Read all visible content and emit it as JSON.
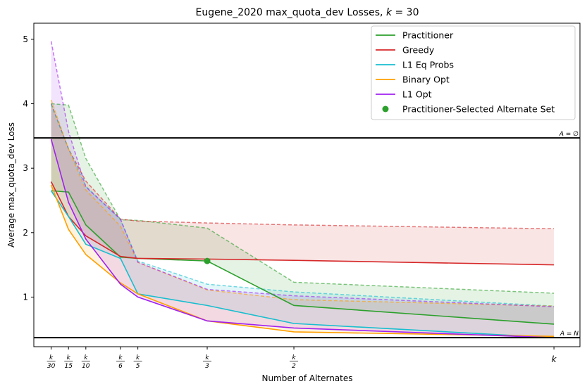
{
  "chart_data": {
    "type": "line",
    "title": "Eugene_2020 max_quota_dev Losses, k = 30",
    "xlabel": "Number of Alternates",
    "ylabel": "Average max_quota_dev Loss",
    "x": [
      1,
      2,
      3,
      5,
      6,
      10,
      15,
      30
    ],
    "x_tick_labels": [
      {
        "num": "k",
        "den": "30"
      },
      {
        "num": "k",
        "den": "15"
      },
      {
        "num": "k",
        "den": "10"
      },
      {
        "num": "k",
        "den": "6"
      },
      {
        "num": "k",
        "den": "5"
      },
      {
        "num": "k",
        "den": "3"
      },
      {
        "num": "k",
        "den": "2"
      },
      {
        "num": "k",
        "den": ""
      }
    ],
    "xlim": [
      0,
      31.5
    ],
    "ylim": [
      0.23,
      5.25
    ],
    "y_ticks": [
      1,
      2,
      3,
      4,
      5
    ],
    "legend_position": "upper-right",
    "series": [
      {
        "name": "Practitioner",
        "color": "#2ca02c",
        "values": [
          2.65,
          2.63,
          2.12,
          1.62,
          1.6,
          1.56,
          0.87,
          0.58
        ],
        "upper": [
          4.0,
          3.98,
          3.15,
          2.2,
          2.19,
          2.07,
          1.23,
          1.06
        ],
        "lower": [
          2.65,
          2.62,
          2.1,
          1.6,
          1.6,
          1.56,
          0.86,
          0.58
        ]
      },
      {
        "name": "Greedy",
        "color": "#d62728",
        "values": [
          2.79,
          2.25,
          1.95,
          1.63,
          1.6,
          1.59,
          1.57,
          1.5
        ],
        "upper": [
          4.0,
          3.3,
          2.8,
          2.21,
          2.18,
          2.15,
          2.12,
          2.06
        ],
        "lower": [
          2.79,
          2.25,
          1.95,
          1.63,
          1.6,
          1.59,
          1.57,
          1.5
        ]
      },
      {
        "name": "L1 Eq Probs",
        "color": "#17becf",
        "values": [
          2.65,
          2.25,
          1.82,
          1.6,
          1.05,
          0.87,
          0.59,
          0.37
        ],
        "upper": [
          3.99,
          3.3,
          2.72,
          2.2,
          1.56,
          1.2,
          1.08,
          0.86
        ],
        "lower": [
          2.65,
          2.25,
          1.82,
          1.6,
          1.05,
          0.87,
          0.59,
          0.37
        ]
      },
      {
        "name": "Binary Opt",
        "color": "#ff9f00",
        "values": [
          2.74,
          2.05,
          1.66,
          1.22,
          1.05,
          0.63,
          0.46,
          0.39
        ],
        "upper": [
          4.06,
          3.3,
          2.66,
          2.1,
          1.54,
          1.11,
          0.96,
          0.86
        ],
        "lower": [
          2.74,
          2.05,
          1.66,
          1.22,
          1.05,
          0.63,
          0.46,
          0.39
        ]
      },
      {
        "name": "L1 Opt",
        "color": "#a020f0",
        "values": [
          3.45,
          2.47,
          1.9,
          1.2,
          1.0,
          0.63,
          0.52,
          0.37
        ],
        "upper": [
          4.97,
          3.57,
          2.71,
          2.21,
          1.54,
          1.12,
          1.02,
          0.85
        ],
        "lower": [
          3.45,
          2.47,
          1.9,
          1.2,
          1.0,
          0.63,
          0.52,
          0.37
        ]
      }
    ],
    "highlight_point": {
      "name": "Practitioner-Selected Alternate Set",
      "color": "#2ca02c",
      "x": 10,
      "y": 1.56
    },
    "reference_lines": [
      {
        "label": "A = ∅",
        "y": 3.47,
        "color": "#000000"
      },
      {
        "label": "A = N",
        "y": 0.37,
        "color": "#000000"
      }
    ]
  }
}
